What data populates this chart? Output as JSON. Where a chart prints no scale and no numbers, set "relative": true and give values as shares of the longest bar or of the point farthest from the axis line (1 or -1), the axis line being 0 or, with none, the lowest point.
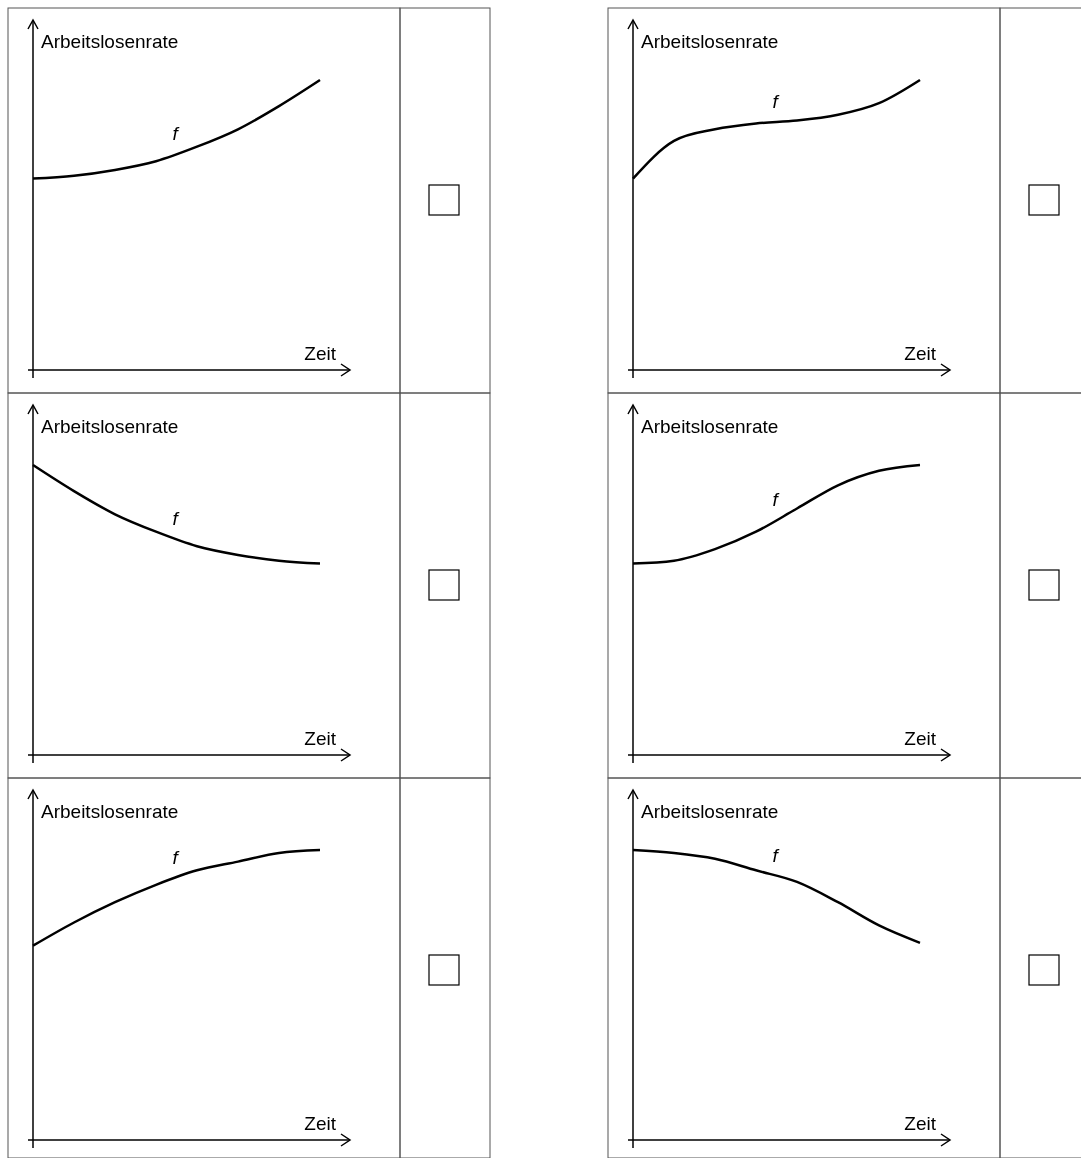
{
  "chart_data": [
    {
      "type": "line",
      "relative": true,
      "xlabel": "Zeit",
      "ylabel": "Arbeitslosenrate",
      "categories": [
        null,
        null,
        null,
        null,
        null,
        null,
        null,
        null
      ],
      "series": [
        {
          "name": "f",
          "color": "#000000",
          "values": [
            0.66,
            0.67,
            0.69,
            0.72,
            0.77,
            0.83,
            0.91,
            1
          ]
        }
      ]
    },
    {
      "type": "line",
      "relative": true,
      "xlabel": "Zeit",
      "ylabel": "Arbeitslosenrate",
      "categories": [
        null,
        null,
        null,
        null,
        null,
        null,
        null,
        null
      ],
      "series": [
        {
          "name": "f",
          "color": "#000000",
          "values": [
            0.66,
            0.79,
            0.83,
            0.85,
            0.86,
            0.88,
            0.92,
            1
          ]
        }
      ]
    },
    {
      "type": "line",
      "relative": true,
      "xlabel": "Zeit",
      "ylabel": "Arbeitslosenrate",
      "categories": [
        null,
        null,
        null,
        null,
        null,
        null,
        null,
        null
      ],
      "series": [
        {
          "name": "f",
          "color": "#000000",
          "values": [
            1,
            0.91,
            0.83,
            0.77,
            0.72,
            0.69,
            0.67,
            0.66
          ]
        }
      ]
    },
    {
      "type": "line",
      "relative": true,
      "xlabel": "Zeit",
      "ylabel": "Arbeitslosenrate",
      "categories": [
        null,
        null,
        null,
        null,
        null,
        null,
        null,
        null
      ],
      "series": [
        {
          "name": "f",
          "color": "#000000",
          "values": [
            0.66,
            0.67,
            0.71,
            0.77,
            0.85,
            0.93,
            0.98,
            1
          ]
        }
      ]
    },
    {
      "type": "line",
      "relative": true,
      "xlabel": "Zeit",
      "ylabel": "Arbeitslosenrate",
      "categories": [
        null,
        null,
        null,
        null,
        null,
        null,
        null,
        null
      ],
      "series": [
        {
          "name": "f",
          "color": "#000000",
          "values": [
            0.67,
            0.75,
            0.82,
            0.88,
            0.93,
            0.96,
            0.99,
            1
          ]
        }
      ]
    },
    {
      "type": "line",
      "relative": true,
      "xlabel": "Zeit",
      "ylabel": "Arbeitslosenrate",
      "categories": [
        null,
        null,
        null,
        null,
        null,
        null,
        null,
        null
      ],
      "series": [
        {
          "name": "f",
          "color": "#000000",
          "values": [
            1,
            0.99,
            0.97,
            0.93,
            0.89,
            0.82,
            0.74,
            0.68
          ]
        }
      ]
    }
  ]
}
